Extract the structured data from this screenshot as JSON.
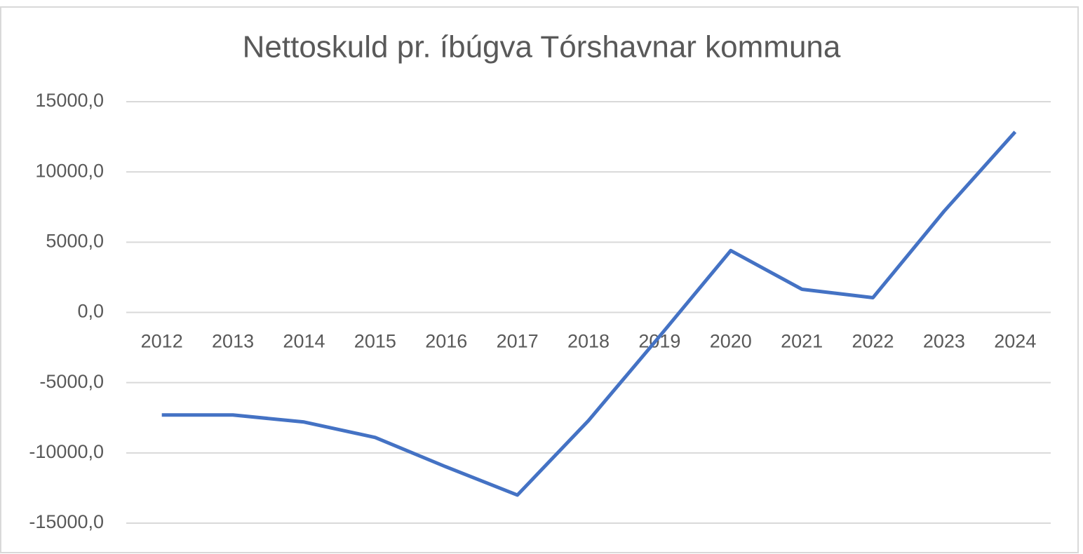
{
  "chart_data": {
    "type": "line",
    "title": "Nettoskuld pr. íbúgva Tórshavnar kommuna",
    "categories": [
      "2012",
      "2013",
      "2014",
      "2015",
      "2016",
      "2017",
      "2018",
      "2019",
      "2020",
      "2021",
      "2022",
      "2023",
      "2024"
    ],
    "series": [
      {
        "name": "Nettoskuld pr. íbúgva",
        "color": "#4472c4",
        "values": [
          -7300,
          -7300,
          -7800,
          -8900,
          -11000,
          -13000,
          -7700,
          -1700,
          4400,
          1650,
          1050,
          7200,
          12850
        ]
      }
    ],
    "ylim": [
      -15000,
      15000
    ],
    "yticks": [
      {
        "value": -15000,
        "label": "-15000,0"
      },
      {
        "value": -10000,
        "label": "-10000,0"
      },
      {
        "value": -5000,
        "label": "-5000,0"
      },
      {
        "value": 0,
        "label": "0,0"
      },
      {
        "value": 5000,
        "label": "5000,0"
      },
      {
        "value": 10000,
        "label": "10000,0"
      },
      {
        "value": 15000,
        "label": "15000,0"
      }
    ],
    "grid": true
  }
}
